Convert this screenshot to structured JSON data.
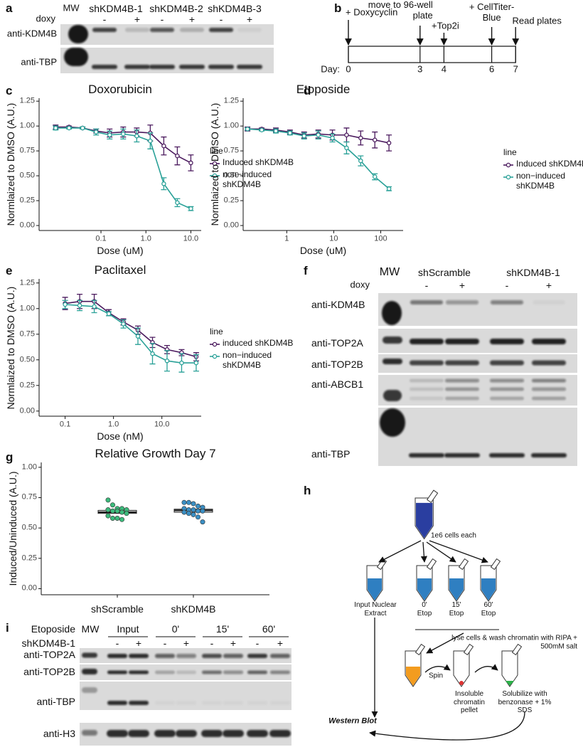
{
  "panel_labels": [
    "a",
    "b",
    "c",
    "d",
    "e",
    "f",
    "g",
    "h",
    "i"
  ],
  "panel_a": {
    "mw": "MW",
    "columns": [
      "shKDM4B-1",
      "shKDM4B-2",
      "shKDM4B-3"
    ],
    "doxy_label": "doxy",
    "doxy": [
      "-",
      "+",
      "-",
      "+",
      "-",
      "+"
    ],
    "rows": [
      "anti-KDM4B",
      "anti-TBP"
    ]
  },
  "panel_b": {
    "events": [
      "+ Doxycyclin",
      "move to 96-well plate",
      "+Top2i",
      "+ CellTiter-Blue",
      "Read plates"
    ],
    "day_label": "Day:",
    "days": [
      0,
      3,
      4,
      6,
      7
    ]
  },
  "chart_data": [
    {
      "type": "line",
      "title": "Doxorubicin",
      "x_label": "Dose (uM)",
      "y_label": "Normlaized to DMSO (A.U.)",
      "log_x": true,
      "legend_title": "line",
      "x": [
        0.0098,
        0.0195,
        0.039,
        0.078,
        0.156,
        0.3125,
        0.625,
        1.25,
        2.5,
        5,
        10
      ],
      "series": [
        {
          "name": "Induced shKDM4B",
          "color": "#4b1a5e",
          "values": [
            0.99,
            0.99,
            0.98,
            0.95,
            0.93,
            0.94,
            0.94,
            0.93,
            0.8,
            0.7,
            0.63
          ],
          "errors": [
            0.02,
            0.01,
            0.01,
            0.02,
            0.04,
            0.05,
            0.04,
            0.08,
            0.09,
            0.09,
            0.08
          ]
        },
        {
          "name": "non−induced shKDM4B",
          "color": "#2aa198",
          "values": [
            0.98,
            0.98,
            0.98,
            0.94,
            0.91,
            0.92,
            0.9,
            0.85,
            0.42,
            0.23,
            0.17
          ],
          "errors": [
            0.02,
            0.01,
            0.01,
            0.03,
            0.04,
            0.05,
            0.06,
            0.08,
            0.06,
            0.04,
            0.02
          ]
        }
      ],
      "xlim": [
        0.0042,
        17
      ],
      "xticks": [
        0.1,
        {
          "value": 1,
          "label": "1.0"
        },
        {
          "value": 10,
          "label": "10.0"
        }
      ],
      "ylim": [
        -0.05,
        1.28
      ],
      "yticks": [
        {
          "value": 0,
          "label": "0.00"
        },
        0.25,
        {
          "value": 0.5,
          "label": "0.50"
        },
        0.75,
        {
          "value": 1,
          "label": "1.00"
        },
        1.25
      ]
    },
    {
      "type": "line",
      "title": "Etoposide",
      "x_label": "Dose (uM)",
      "y_label": "Normlaized to DMSO (A.U.)",
      "log_x": true,
      "legend_title": "line",
      "x": [
        0.146,
        0.293,
        0.586,
        1.17,
        2.34,
        4.69,
        9.38,
        18.75,
        37.5,
        75,
        150
      ],
      "series": [
        {
          "name": "Induced shKDM4B",
          "color": "#4b1a5e",
          "values": [
            0.97,
            0.97,
            0.96,
            0.94,
            0.91,
            0.92,
            0.91,
            0.91,
            0.88,
            0.86,
            0.83
          ],
          "errors": [
            0.02,
            0.01,
            0.02,
            0.02,
            0.03,
            0.04,
            0.05,
            0.07,
            0.07,
            0.08,
            0.08
          ]
        },
        {
          "name": "non−induced shKDM4B",
          "color": "#2aa198",
          "values": [
            0.97,
            0.96,
            0.95,
            0.93,
            0.9,
            0.91,
            0.88,
            0.78,
            0.65,
            0.49,
            0.37
          ],
          "errors": [
            0.01,
            0.01,
            0.02,
            0.02,
            0.03,
            0.04,
            0.04,
            0.06,
            0.05,
            0.03,
            0.02
          ]
        }
      ],
      "xlim": [
        0.118,
        300
      ],
      "xticks": [
        1,
        10,
        100
      ],
      "ylim": [
        -0.05,
        1.28
      ],
      "yticks": [
        {
          "value": 0,
          "label": "0.00"
        },
        0.25,
        {
          "value": 0.5,
          "label": "0.50"
        },
        0.75,
        {
          "value": 1,
          "label": "1.00"
        },
        1.25
      ]
    },
    {
      "type": "line",
      "title": "Paclitaxel",
      "x_label": "Dose (nM)",
      "y_label": "Normlaized to DMSO (A.U.)",
      "log_x": true,
      "legend_title": "line",
      "x": [
        0.1,
        0.2,
        0.4,
        0.8,
        1.6,
        3.2,
        6.4,
        12.8,
        25.6,
        51.2
      ],
      "series": [
        {
          "name": "induced shKDM4B",
          "color": "#4b1a5e",
          "values": [
            1.05,
            1.07,
            1.07,
            0.96,
            0.87,
            0.79,
            0.67,
            0.6,
            0.57,
            0.53
          ],
          "errors": [
            0.06,
            0.07,
            0.07,
            0.03,
            0.03,
            0.04,
            0.05,
            0.04,
            0.03,
            0.04
          ]
        },
        {
          "name": "non−induced shKDM4B",
          "color": "#2aa198",
          "values": [
            1.04,
            1.03,
            1.02,
            0.95,
            0.85,
            0.73,
            0.56,
            0.49,
            0.47,
            0.47
          ],
          "errors": [
            0.04,
            0.05,
            0.06,
            0.02,
            0.04,
            0.08,
            0.1,
            0.1,
            0.09,
            0.08
          ]
        }
      ],
      "xlim": [
        0.029,
        65
      ],
      "xticks": [
        0.1,
        {
          "value": 1,
          "label": "1.0"
        },
        {
          "value": 10,
          "label": "10.0"
        }
      ],
      "ylim": [
        -0.05,
        1.29
      ],
      "yticks": [
        {
          "value": 0,
          "label": "0.00"
        },
        0.25,
        {
          "value": 0.5,
          "label": "0.50"
        },
        0.75,
        {
          "value": 1,
          "label": "1.00"
        },
        1.25
      ]
    },
    {
      "type": "box",
      "title": "Relative Growth Day 7",
      "y_label": "Induced/Uninduced (A.U.)",
      "categories": [
        "shScramble",
        "shKDM4B"
      ],
      "boxes": [
        {
          "q1": 0.62,
          "median": 0.63,
          "q3": 0.645,
          "color": "#3dbb7c",
          "points": [
            0.73,
            0.69,
            0.66,
            0.66,
            0.65,
            0.65,
            0.64,
            0.64,
            0.63,
            0.62,
            0.6,
            0.58,
            0.58,
            0.57
          ]
        },
        {
          "q1": 0.63,
          "median": 0.645,
          "q3": 0.655,
          "color": "#3a8fc4",
          "points": [
            0.71,
            0.71,
            0.7,
            0.68,
            0.67,
            0.66,
            0.65,
            0.65,
            0.64,
            0.64,
            0.63,
            0.62,
            0.61,
            0.59,
            0.55
          ]
        }
      ],
      "ylim": [
        -0.05,
        1.04
      ],
      "yticks": [
        {
          "value": 0,
          "label": "0.00"
        },
        0.25,
        {
          "value": 0.5,
          "label": "0.50"
        },
        0.75,
        {
          "value": 1,
          "label": "1.00"
        }
      ]
    }
  ],
  "panel_f": {
    "mw": "MW",
    "columns": [
      "shScramble",
      "shKDM4B-1"
    ],
    "doxy_label": "doxy",
    "doxy": [
      "-",
      "+",
      "-",
      "+"
    ],
    "rows": [
      "anti-KDM4B",
      "anti-TOP2A",
      "anti-TOP2B",
      "anti-ABCB1",
      "anti-TBP"
    ]
  },
  "panel_h": {
    "cells_note": "1e6 cells each",
    "tubes": [
      "Input Nuclear Extract",
      "0' Etop",
      "15' Etop",
      "60' Etop"
    ],
    "wash": "lyse cells & wash chromatin with RIPA + 500mM salt",
    "spin": "Spin",
    "pellet": "Insoluble chromatin pellet",
    "solubilize": "Solubilize with benzonase + 1% SDS",
    "readout": "Western Blot"
  },
  "panel_i": {
    "etoposide_label": "Etoposide",
    "mw": "MW",
    "columns": [
      "Input",
      "0'",
      "15'",
      "60'"
    ],
    "sh_label": "shKDM4B-1",
    "sh": [
      "-",
      "+",
      "-",
      "+",
      "-",
      "+",
      "-",
      "+"
    ],
    "rows": [
      "anti-TOP2A",
      "anti-TOP2B",
      "anti-TBP",
      "anti-H3"
    ]
  }
}
